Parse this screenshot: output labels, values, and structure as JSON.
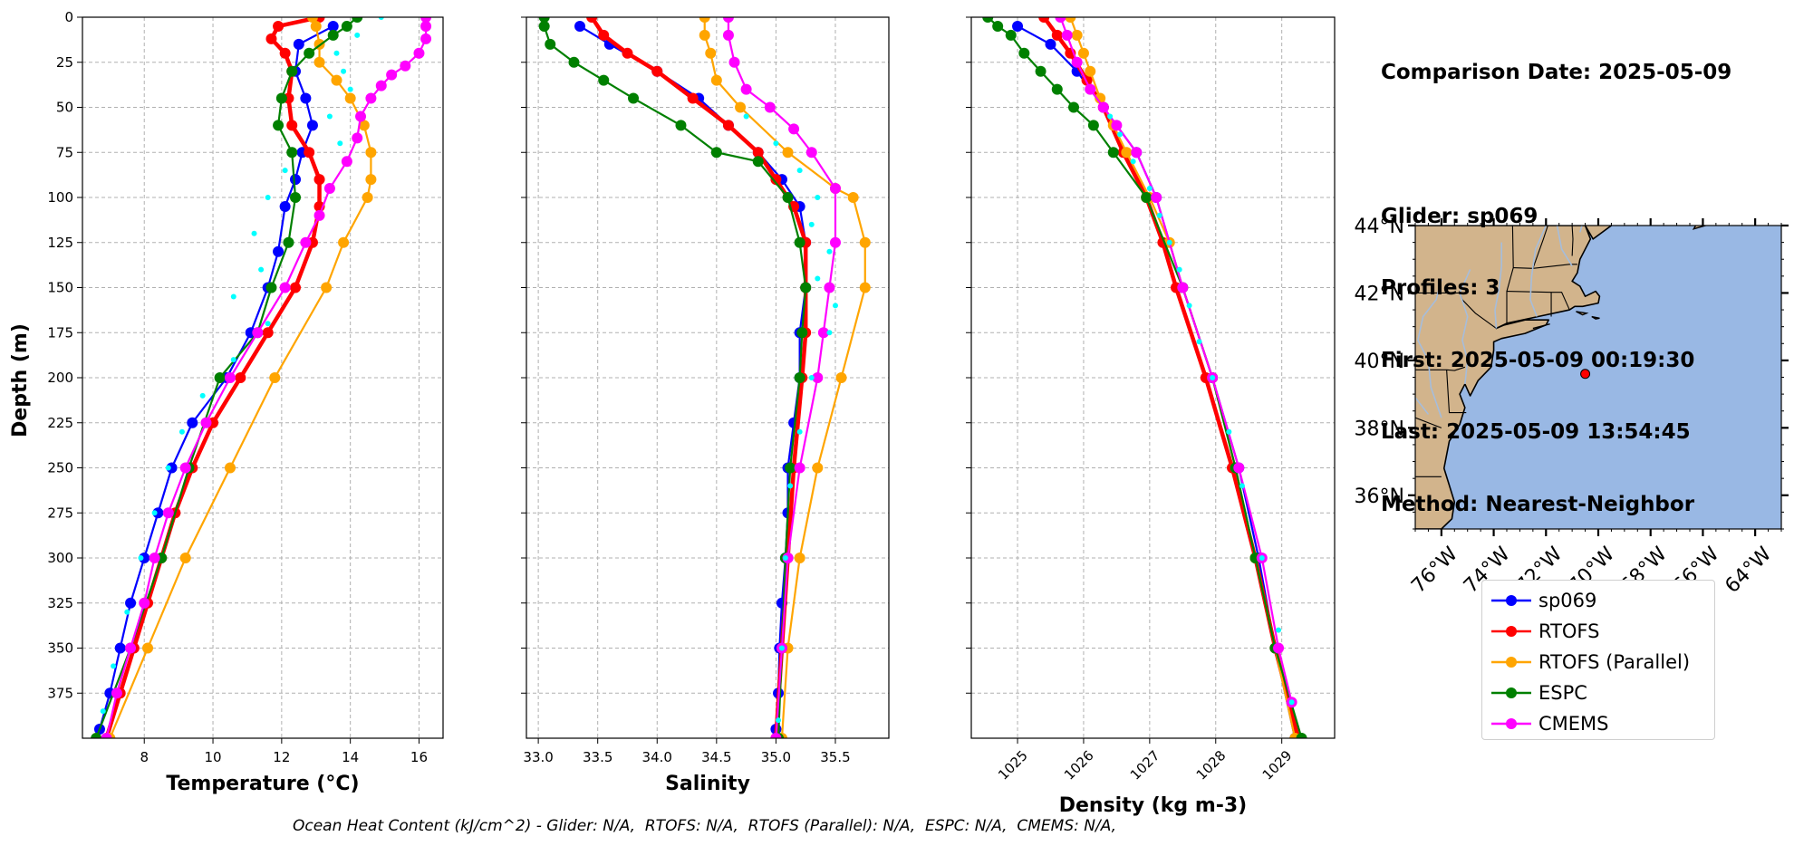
{
  "info": {
    "comparison": "Comparison Date: 2025-05-09",
    "glider": "Glider: sp069",
    "profiles": "Profiles: 3",
    "first": "First: 2025-05-09 00:19:30",
    "last": "Last: 2025-05-09 13:54:45",
    "method": "Method: Nearest-Neighbor"
  },
  "caption": "Ocean Heat Content (kJ/cm^2) - Glider: N/A,  RTOFS: N/A,  RTOFS (Parallel): N/A,  ESPC: N/A,  CMEMS: N/A,",
  "colors": {
    "sp069": "#0000ff",
    "RTOFS": "#ff0000",
    "RTOFS (Parallel)": "#ffa500",
    "ESPC": "#008000",
    "CMEMS": "#ff00ff",
    "obs": "#00ffff",
    "land": "#d2b48c",
    "ocean": "#99b8e4",
    "rivers": "#a6bddb"
  },
  "legend": [
    {
      "name": "sp069",
      "color": "#0000ff"
    },
    {
      "name": "RTOFS",
      "color": "#ff0000"
    },
    {
      "name": "RTOFS (Parallel)",
      "color": "#ffa500"
    },
    {
      "name": "ESPC",
      "color": "#008000"
    },
    {
      "name": "CMEMS",
      "color": "#ff00ff"
    }
  ],
  "chart_data": [
    {
      "type": "line",
      "xlabel": "Temperature (°C)",
      "ylabel": "Depth (m)",
      "xlim": [
        6.2,
        16.7
      ],
      "ylim": [
        400,
        0
      ],
      "xticks": [
        8,
        10,
        12,
        14,
        16
      ],
      "yticks": [
        0,
        25,
        50,
        75,
        100,
        125,
        150,
        175,
        200,
        225,
        250,
        275,
        300,
        325,
        350,
        375
      ],
      "grid": true,
      "series": [
        {
          "name": "sp069",
          "color": "#0000ff",
          "depth": [
            5,
            15,
            30,
            45,
            60,
            75,
            90,
            105,
            130,
            150,
            175,
            200,
            225,
            250,
            275,
            300,
            325,
            350,
            375,
            395
          ],
          "values": [
            13.5,
            12.5,
            12.4,
            12.7,
            12.9,
            12.6,
            12.4,
            12.1,
            11.9,
            11.6,
            11.1,
            10.4,
            9.4,
            8.8,
            8.4,
            8.0,
            7.6,
            7.3,
            7.0,
            6.7
          ]
        },
        {
          "name": "RTOFS",
          "color": "#ff0000",
          "depth": [
            0,
            5,
            12,
            20,
            30,
            45,
            60,
            75,
            90,
            105,
            125,
            150,
            175,
            200,
            225,
            250,
            275,
            300,
            325,
            350,
            375,
            400
          ],
          "values": [
            13.1,
            11.9,
            11.7,
            12.1,
            12.3,
            12.2,
            12.3,
            12.8,
            13.1,
            13.1,
            12.9,
            12.4,
            11.6,
            10.8,
            10.0,
            9.4,
            8.9,
            8.5,
            8.1,
            7.7,
            7.3,
            6.9
          ]
        },
        {
          "name": "RTOFS (Parallel)",
          "color": "#ffa500",
          "depth": [
            0,
            5,
            15,
            25,
            35,
            45,
            60,
            75,
            90,
            100,
            125,
            150,
            200,
            250,
            300,
            350,
            400
          ],
          "values": [
            12.9,
            13.0,
            13.1,
            13.1,
            13.6,
            14.0,
            14.4,
            14.6,
            14.6,
            14.5,
            13.8,
            13.3,
            11.8,
            10.5,
            9.2,
            8.1,
            7.0
          ]
        },
        {
          "name": "ESPC",
          "color": "#008000",
          "depth": [
            0,
            5,
            10,
            20,
            30,
            45,
            60,
            75,
            100,
            125,
            150,
            175,
            200,
            250,
            300,
            350,
            400
          ],
          "values": [
            14.2,
            13.9,
            13.5,
            12.8,
            12.3,
            12.0,
            11.9,
            12.3,
            12.4,
            12.2,
            11.7,
            11.3,
            10.2,
            9.3,
            8.5,
            7.6,
            6.6
          ]
        },
        {
          "name": "CMEMS",
          "color": "#ff00ff",
          "depth": [
            0,
            5,
            12,
            20,
            27,
            32,
            38,
            45,
            55,
            67,
            80,
            95,
            110,
            125,
            150,
            175,
            200,
            225,
            250,
            275,
            300,
            325,
            350,
            375,
            400
          ],
          "values": [
            16.2,
            16.2,
            16.2,
            16.0,
            15.6,
            15.2,
            14.9,
            14.6,
            14.3,
            14.2,
            13.9,
            13.4,
            13.1,
            12.7,
            12.1,
            11.3,
            10.5,
            9.8,
            9.2,
            8.7,
            8.3,
            8.0,
            7.6,
            7.2,
            6.9
          ]
        },
        {
          "name": "glider observations",
          "color": "#00ffff",
          "depth": [
            0,
            10,
            20,
            30,
            40,
            55,
            70,
            85,
            100,
            120,
            140,
            155,
            170,
            190,
            210,
            230,
            250,
            275,
            300,
            330,
            360,
            385
          ],
          "values": [
            14.9,
            14.2,
            13.6,
            13.8,
            14.0,
            13.4,
            13.7,
            12.1,
            11.6,
            11.2,
            11.4,
            10.6,
            11.6,
            10.6,
            9.7,
            9.1,
            8.7,
            8.3,
            7.9,
            7.5,
            7.1,
            6.8
          ]
        }
      ]
    },
    {
      "type": "line",
      "xlabel": "Salinity",
      "xlim": [
        32.9,
        35.95
      ],
      "ylim": [
        400,
        0
      ],
      "xticks": [
        33.0,
        33.5,
        34.0,
        34.5,
        35.0,
        35.5
      ],
      "grid": true,
      "series": [
        {
          "name": "sp069",
          "color": "#0000ff",
          "depth": [
            5,
            15,
            30,
            45,
            60,
            75,
            90,
            105,
            125,
            150,
            175,
            200,
            225,
            250,
            275,
            300,
            325,
            350,
            375,
            395
          ],
          "values": [
            33.35,
            33.6,
            34.0,
            34.35,
            34.6,
            34.85,
            35.05,
            35.2,
            35.25,
            35.25,
            35.2,
            35.2,
            35.15,
            35.1,
            35.1,
            35.08,
            35.05,
            35.03,
            35.02,
            35.0
          ]
        },
        {
          "name": "RTOFS",
          "color": "#ff0000",
          "depth": [
            0,
            10,
            20,
            30,
            45,
            60,
            75,
            90,
            105,
            125,
            150,
            175,
            200,
            250,
            300,
            350,
            400
          ],
          "values": [
            33.45,
            33.55,
            33.75,
            34.0,
            34.3,
            34.6,
            34.85,
            35.0,
            35.15,
            35.25,
            35.25,
            35.25,
            35.22,
            35.15,
            35.1,
            35.05,
            35.0
          ]
        },
        {
          "name": "RTOFS (Parallel)",
          "color": "#ffa500",
          "depth": [
            0,
            10,
            20,
            35,
            50,
            75,
            95,
            100,
            125,
            150,
            200,
            250,
            300,
            350,
            400
          ],
          "values": [
            34.4,
            34.4,
            34.45,
            34.5,
            34.7,
            35.1,
            35.5,
            35.65,
            35.75,
            35.75,
            35.55,
            35.35,
            35.2,
            35.1,
            35.05
          ]
        },
        {
          "name": "ESPC",
          "color": "#008000",
          "depth": [
            0,
            5,
            15,
            25,
            35,
            45,
            60,
            75,
            80,
            100,
            125,
            150,
            175,
            200,
            250,
            300,
            350,
            400
          ],
          "values": [
            33.05,
            33.05,
            33.1,
            33.3,
            33.55,
            33.8,
            34.2,
            34.5,
            34.85,
            35.1,
            35.2,
            35.25,
            35.22,
            35.2,
            35.12,
            35.08,
            35.05,
            35.02
          ]
        },
        {
          "name": "CMEMS",
          "color": "#ff00ff",
          "depth": [
            0,
            10,
            25,
            40,
            50,
            62,
            75,
            95,
            125,
            150,
            175,
            200,
            250,
            300,
            350,
            400
          ],
          "values": [
            34.6,
            34.6,
            34.65,
            34.75,
            34.95,
            35.15,
            35.3,
            35.5,
            35.5,
            35.45,
            35.4,
            35.35,
            35.2,
            35.1,
            35.05,
            35.0
          ]
        },
        {
          "name": "glider observations",
          "color": "#00ffff",
          "depth": [
            55,
            70,
            85,
            100,
            115,
            130,
            145,
            160,
            175,
            200,
            230,
            260,
            300,
            350,
            390
          ],
          "values": [
            34.75,
            35.0,
            35.2,
            35.35,
            35.3,
            35.45,
            35.35,
            35.5,
            35.45,
            35.3,
            35.2,
            35.12,
            35.08,
            35.05,
            35.02
          ]
        }
      ]
    },
    {
      "type": "line",
      "xlabel": "Density (kg m-3)",
      "xlim": [
        1024.3,
        1029.8
      ],
      "ylim": [
        400,
        0
      ],
      "xticks": [
        1025,
        1026,
        1027,
        1028,
        1029
      ],
      "grid": true,
      "series": [
        {
          "name": "sp069",
          "color": "#0000ff",
          "depth": [
            5,
            15,
            30,
            50,
            75,
            100,
            150,
            200,
            250,
            300,
            350,
            400
          ],
          "values": [
            1025.0,
            1025.5,
            1025.9,
            1026.3,
            1026.8,
            1027.1,
            1027.5,
            1027.95,
            1028.35,
            1028.65,
            1028.9,
            1029.2
          ]
        },
        {
          "name": "RTOFS",
          "color": "#ff0000",
          "depth": [
            0,
            10,
            20,
            35,
            50,
            75,
            100,
            125,
            150,
            200,
            250,
            300,
            350,
            400
          ],
          "values": [
            1025.4,
            1025.6,
            1025.8,
            1026.05,
            1026.3,
            1026.6,
            1026.95,
            1027.2,
            1027.4,
            1027.85,
            1028.25,
            1028.6,
            1028.9,
            1029.25
          ]
        },
        {
          "name": "RTOFS (Parallel)",
          "color": "#ffa500",
          "depth": [
            0,
            10,
            20,
            30,
            45,
            60,
            75,
            100,
            125,
            150,
            200,
            250,
            300,
            350,
            400
          ],
          "values": [
            1025.8,
            1025.9,
            1026.0,
            1026.1,
            1026.25,
            1026.45,
            1026.65,
            1027.0,
            1027.3,
            1027.5,
            1027.95,
            1028.3,
            1028.6,
            1028.9,
            1029.2
          ]
        },
        {
          "name": "ESPC",
          "color": "#008000",
          "depth": [
            0,
            5,
            10,
            20,
            30,
            40,
            50,
            60,
            75,
            100,
            150,
            200,
            250,
            300,
            350,
            400
          ],
          "values": [
            1024.55,
            1024.7,
            1024.9,
            1025.1,
            1025.35,
            1025.6,
            1025.85,
            1026.15,
            1026.45,
            1026.95,
            1027.5,
            1027.95,
            1028.3,
            1028.6,
            1028.9,
            1029.3
          ]
        },
        {
          "name": "CMEMS",
          "color": "#ff00ff",
          "depth": [
            0,
            10,
            25,
            40,
            50,
            60,
            75,
            100,
            150,
            200,
            250,
            300,
            350,
            380
          ],
          "values": [
            1025.65,
            1025.75,
            1025.9,
            1026.1,
            1026.3,
            1026.5,
            1026.8,
            1027.1,
            1027.5,
            1027.95,
            1028.35,
            1028.7,
            1028.95,
            1029.15
          ]
        },
        {
          "name": "glider observations",
          "color": "#00ffff",
          "depth": [
            55,
            65,
            80,
            95,
            110,
            125,
            140,
            160,
            180,
            200,
            230,
            260,
            300,
            340,
            380
          ],
          "values": [
            1026.4,
            1026.55,
            1026.75,
            1027.0,
            1027.15,
            1027.3,
            1027.45,
            1027.6,
            1027.75,
            1027.95,
            1028.2,
            1028.4,
            1028.7,
            1028.95,
            1029.15
          ]
        }
      ]
    },
    {
      "type": "map",
      "lon_range": [
        -77.0,
        -63.0
      ],
      "lat_range": [
        35.0,
        44.0
      ],
      "lon_ticks": [
        "76°W",
        "74°W",
        "72°W",
        "70°W",
        "68°W",
        "66°W",
        "64°W"
      ],
      "lon_tick_values": [
        -76,
        -74,
        -72,
        -70,
        -68,
        -66,
        -64
      ],
      "lat_ticks": [
        "36°N",
        "38°N",
        "40°N",
        "42°N",
        "44°N"
      ],
      "lat_tick_values": [
        36,
        38,
        40,
        42,
        44
      ],
      "glider_position": {
        "lon": -70.5,
        "lat": 39.6,
        "color": "#ff0000"
      }
    }
  ]
}
